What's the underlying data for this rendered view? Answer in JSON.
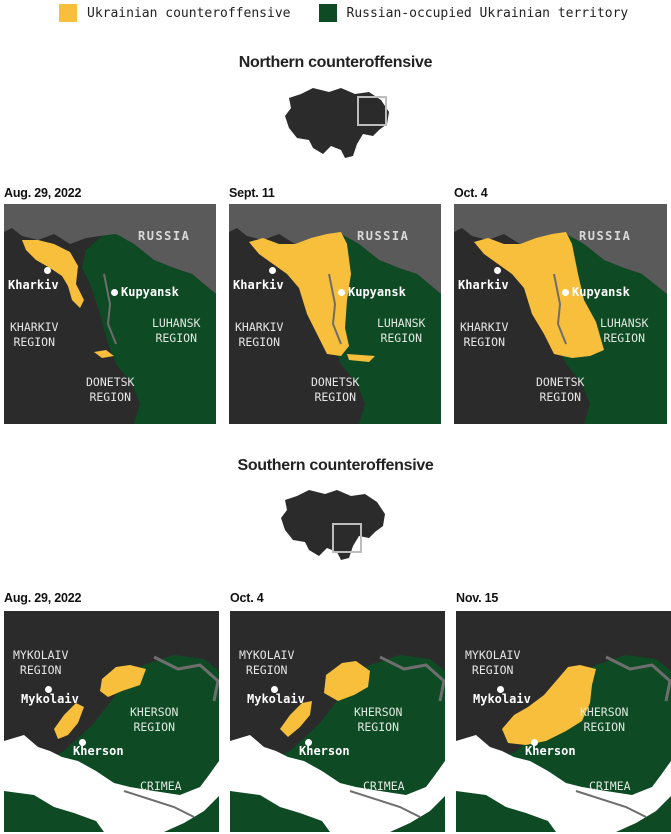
{
  "legend": {
    "counteroffensive": {
      "label": "Ukrainian counteroffensive",
      "color": "#F7BF3B"
    },
    "occupied": {
      "label": "Russian-occupied Ukrainian territory",
      "color": "#0E4A24"
    }
  },
  "colors": {
    "ukraine": "#2B2B2B",
    "russia": "#5A5A5A",
    "river": "#6E6E6E",
    "background": "#FFFFFF"
  },
  "north": {
    "title": "Northern counteroffensive",
    "panels": [
      {
        "date": "Aug. 29, 2022",
        "progress": "initial"
      },
      {
        "date": "Sept. 11",
        "progress": "expanded"
      },
      {
        "date": "Oct. 4",
        "progress": "further"
      }
    ],
    "labels": {
      "russia": "RUSSIA",
      "kharkiv": "Kharkiv",
      "kupyansk": "Kupyansk",
      "kharkiv_region": "KHARKIV\nREGION",
      "luhansk_region": "LUHANSK\nREGION",
      "donetsk_region": "DONETSK\nREGION"
    }
  },
  "south": {
    "title": "Southern counteroffensive",
    "panels": [
      {
        "date": "Aug. 29, 2022",
        "progress": "initial"
      },
      {
        "date": "Oct. 4",
        "progress": "expanded"
      },
      {
        "date": "Nov. 15",
        "progress": "further"
      }
    ],
    "labels": {
      "mykolaiv_region": "MYKOLAIV\nREGION",
      "mykolaiv": "Mykolaiv",
      "kherson": "Kherson",
      "kherson_region": "KHERSON\nREGION",
      "crimea": "CRIMEA"
    }
  }
}
